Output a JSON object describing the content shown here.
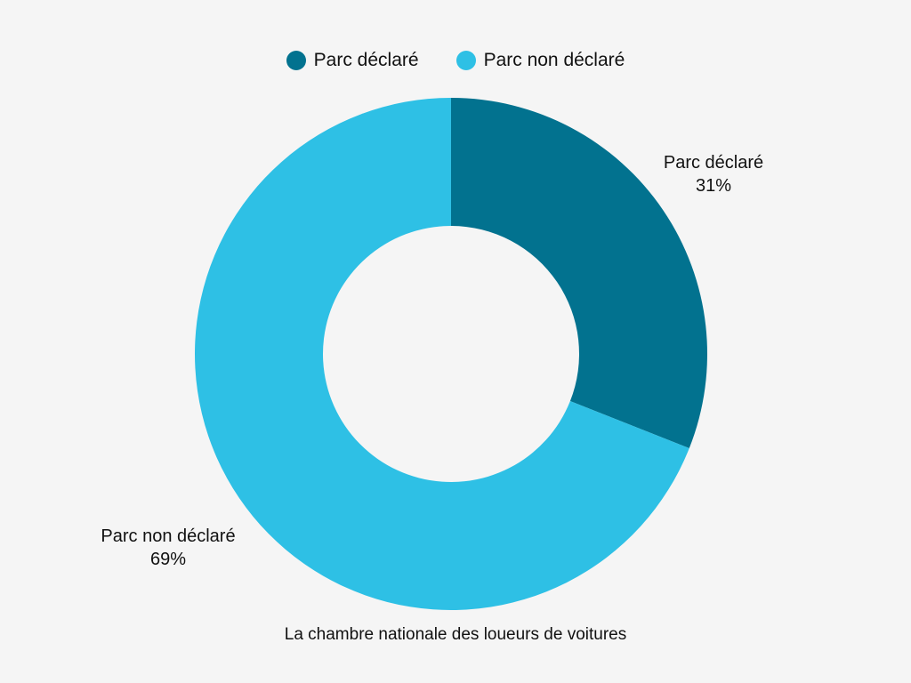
{
  "chart_data": {
    "type": "pie",
    "variant": "donut",
    "legend_position": "top",
    "categories": [
      "Parc déclaré",
      "Parc non déclaré"
    ],
    "values": [
      31,
      69
    ],
    "value_labels": [
      "31%",
      "69%"
    ],
    "colors": [
      "#02728f",
      "#2ec0e5"
    ],
    "caption": "La chambre nationale des loueurs de voitures"
  }
}
